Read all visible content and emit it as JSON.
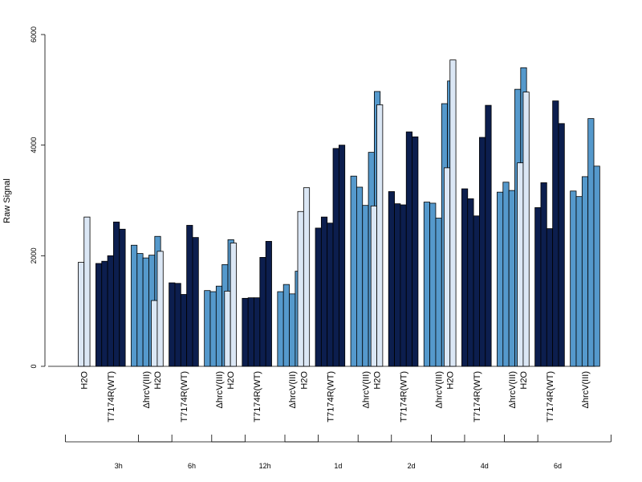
{
  "chart_data": {
    "type": "bar",
    "ylabel": "Raw Signal",
    "ylim": [
      0,
      6000
    ],
    "yticks": [
      "0",
      "2000",
      "4000",
      "6000"
    ],
    "grid": false,
    "legend": "none",
    "timepoints": [
      "3h",
      "6h",
      "12h",
      "1d",
      "2d",
      "4d",
      "6d"
    ],
    "treatments": [
      {
        "name": "H2O",
        "label": "H2O",
        "color": "#dbe7f5"
      },
      {
        "name": "T7174R(WT)",
        "label": "T7174R(WT)",
        "color": "#0c1e4e"
      },
      {
        "name": "ΔhrcV(III)",
        "label": "ΔhrcV(III)",
        "color": "#5599cc"
      }
    ],
    "values": [
      [
        [
          1880,
          2700
        ],
        [
          1860,
          1900,
          2000,
          2610,
          2480
        ],
        [
          2190,
          2040,
          1960,
          2010,
          2350
        ]
      ],
      [
        [
          1190,
          2080
        ],
        [
          1510,
          1500,
          1300,
          2550,
          2330
        ],
        [
          1370,
          1350,
          1450,
          1840,
          2290
        ]
      ],
      [
        [
          1360,
          2230
        ],
        [
          1230,
          1240,
          1240,
          1970,
          2260
        ],
        [
          1350,
          1480,
          1310,
          1720,
          2130
        ]
      ],
      [
        [
          2800,
          3230
        ],
        [
          2500,
          2700,
          2590,
          3940,
          4000
        ],
        [
          3440,
          3240,
          2910,
          3870,
          4970
        ]
      ],
      [
        [
          2900,
          4730
        ],
        [
          3160,
          2940,
          2920,
          4240,
          4150
        ],
        [
          2970,
          2950,
          2680,
          4750,
          5160
        ]
      ],
      [
        [
          3590,
          5540
        ],
        [
          3210,
          3030,
          2720,
          4140,
          4720
        ],
        [
          3150,
          3330,
          3180,
          5010,
          5400
        ]
      ],
      [
        [
          3680,
          4960
        ],
        [
          2870,
          3320,
          2490,
          4800,
          4390
        ],
        [
          3170,
          3070,
          3430,
          4480,
          3620
        ]
      ]
    ]
  }
}
